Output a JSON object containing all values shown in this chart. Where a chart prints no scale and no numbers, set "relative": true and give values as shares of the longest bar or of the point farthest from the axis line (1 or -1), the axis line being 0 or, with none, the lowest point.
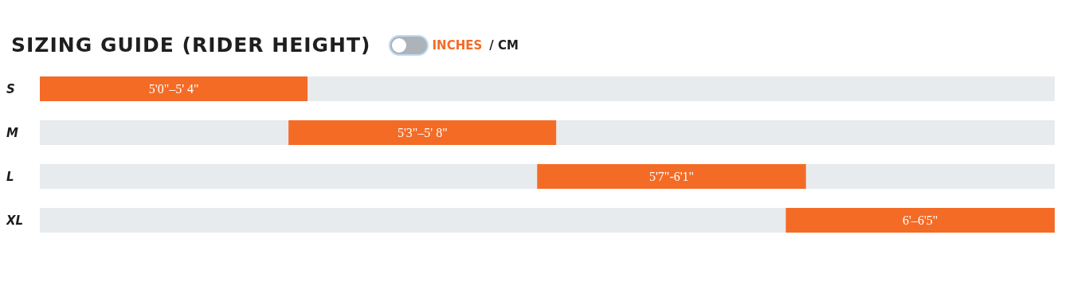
{
  "chart_data": {
    "type": "bar",
    "orientation": "horizontal",
    "relative": true,
    "stacked": true,
    "title": "SIZING GUIDE (RIDER HEIGHT)",
    "annotations": [
      "INCHES",
      "/ CM",
      "5'0\"–5' 4\"",
      "5'3\"–5' 8\"",
      "5'7\"-6'1\"",
      "6'–6'5\""
    ],
    "categories": [
      "S",
      "M",
      "L",
      "XL"
    ],
    "series": [
      {
        "color": "#e8ebee",
        "values": [
          0,
          0.245,
          0.49,
          0.735
        ]
      },
      {
        "color": "#f46b26",
        "values": [
          0.264,
          0.264,
          0.265,
          0.265
        ]
      },
      {
        "color": "#e8ebee",
        "values": [
          0.736,
          0.491,
          0.245,
          0
        ]
      }
    ]
  }
}
